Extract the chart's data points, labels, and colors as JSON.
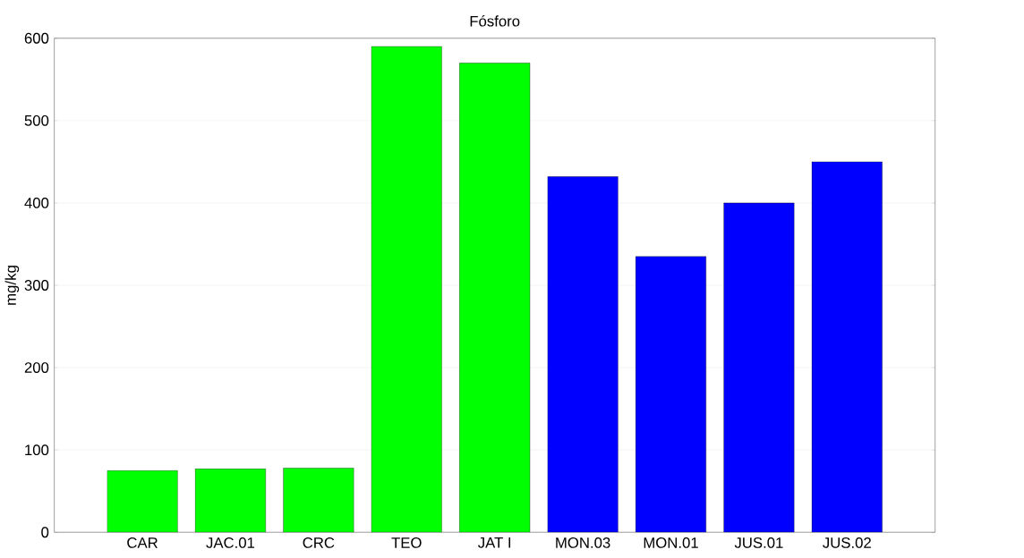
{
  "chart_data": {
    "type": "bar",
    "title": "Fósforo",
    "ylabel": "mg/kg",
    "categories": [
      "CAR",
      "JAC.01",
      "CRC",
      "TEO",
      "JAT I",
      "MON.03",
      "MON.01",
      "JUS.01",
      "JUS.02"
    ],
    "values": [
      75,
      77,
      78,
      590,
      570,
      432,
      335,
      400,
      450
    ],
    "colors": [
      "#00ff00",
      "#00ff00",
      "#00ff00",
      "#00ff00",
      "#00ff00",
      "#0000ff",
      "#0000ff",
      "#0000ff",
      "#0000ff"
    ],
    "ylim": [
      0,
      600
    ],
    "yticks": [
      0,
      100,
      200,
      300,
      400,
      500,
      600
    ],
    "grid": "y"
  }
}
